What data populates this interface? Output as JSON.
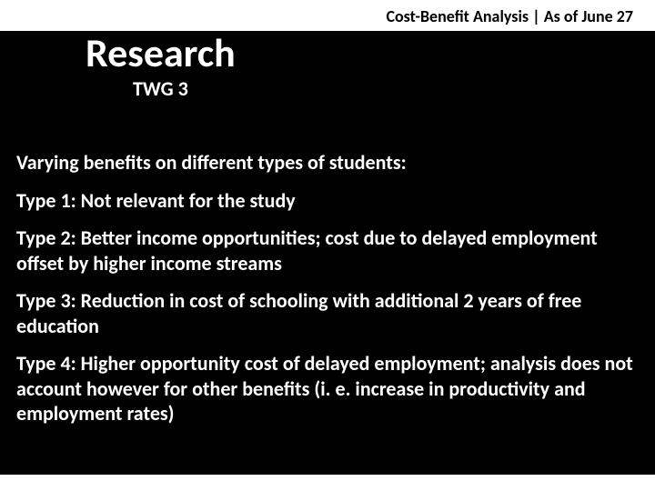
{
  "colors": {
    "background": "#000000",
    "text_light": "#ffffff",
    "text_dark": "#000000",
    "strip": "#ffffff"
  },
  "typography": {
    "family": "Calibri",
    "header_fontsize": 18,
    "title_fontsize": 44,
    "subtitle_fontsize": 22,
    "body_fontsize": 22,
    "weight": 700
  },
  "header": {
    "label": "Cost-Benefit Analysis | As of June 27"
  },
  "title": {
    "main": "Research",
    "sub": "TWG 3"
  },
  "body": {
    "intro": "Varying benefits on different types of students:",
    "items": [
      "Type 1: Not relevant for the study",
      "Type 2: Better income opportunities; cost due to delayed employment offset by higher income streams",
      "Type 3: Reduction in cost of schooling with additional 2 years of free education",
      "Type 4: Higher opportunity cost of delayed employment; analysis does not account however for other benefits (i. e. increase in productivity and employment rates)"
    ]
  }
}
